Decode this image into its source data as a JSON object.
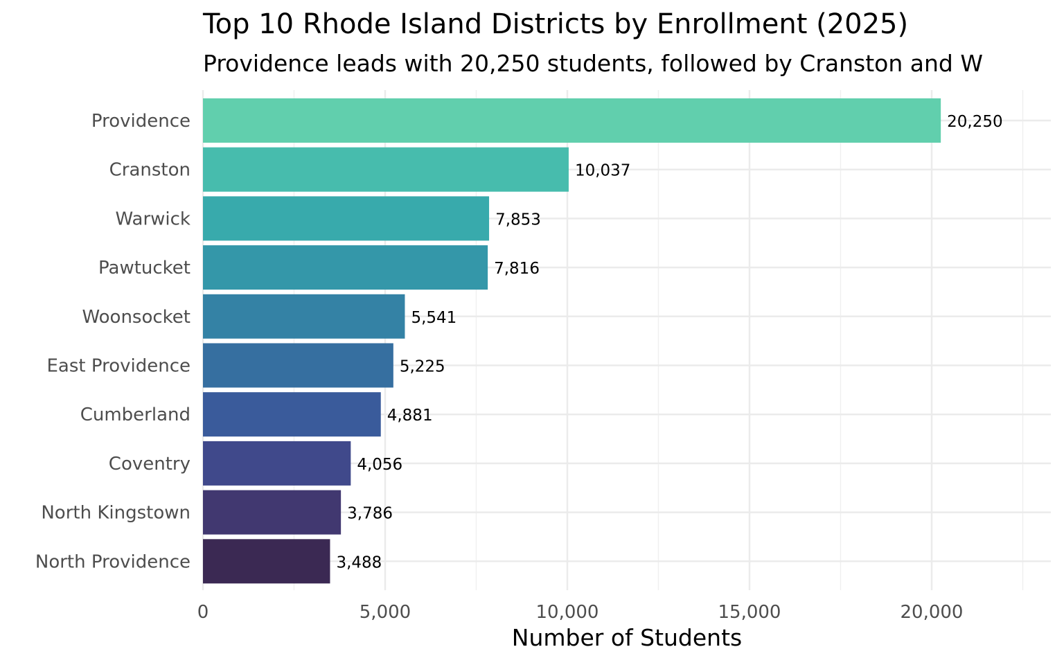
{
  "chart_data": {
    "type": "bar",
    "orientation": "horizontal",
    "title": "Top 10 Rhode Island Districts by Enrollment (2025)",
    "subtitle": "Providence leads with 20,250 students, followed by Cranston and W",
    "xlabel": "Number of Students",
    "ylabel": "",
    "xlim": [
      0,
      23270
    ],
    "xticks": [
      0,
      5000,
      10000,
      15000,
      20000
    ],
    "xtick_labels": [
      "0",
      "5,000",
      "10,000",
      "15,000",
      "20,000"
    ],
    "grid": true,
    "categories": [
      "Providence",
      "Cranston",
      "Warwick",
      "Pawtucket",
      "Woonsocket",
      "East Providence",
      "Cumberland",
      "Coventry",
      "North Kingstown",
      "North Providence"
    ],
    "values": [
      20250,
      10037,
      7853,
      7816,
      5541,
      5225,
      4881,
      4056,
      3786,
      3488
    ],
    "data_labels": [
      "20,250",
      "10,037",
      "7,853",
      "7,816",
      "5,541",
      "5,225",
      "4,881",
      "4,056",
      "3,786",
      "3,488"
    ],
    "colors": [
      "#61cfad",
      "#47bcad",
      "#38aaac",
      "#3497a9",
      "#3482a5",
      "#366fa0",
      "#3a5b9b",
      "#40498b",
      "#413870",
      "#3b2953"
    ]
  }
}
